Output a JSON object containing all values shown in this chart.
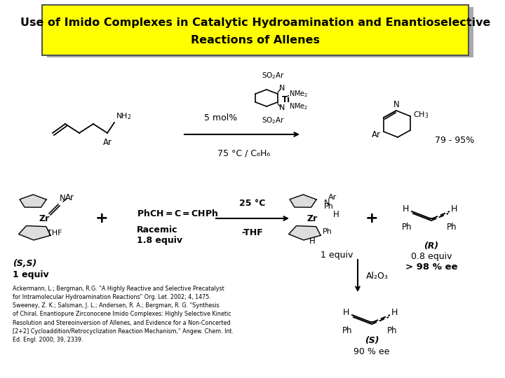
{
  "title_line1": "Use of Imido Complexes in Catalytic Hydroamination and Enantioselective",
  "title_line2": "Reactions of Allenes",
  "title_box_color": "#FFFF00",
  "title_border_color": "#555555",
  "title_shadow_color": "#AAAAAA",
  "bg_color": "#FFFFFF",
  "title_fontsize": 11.5,
  "text_color": "#000000",
  "label_5mol": "5 mol%",
  "label_temp": "75 °C / C₆H₆",
  "label_yield": "79 - 95%",
  "label_25C": "25 °C",
  "label_thf": "-THF",
  "label_racemic_1": "Racemic",
  "label_racemic_2": "1.8 equiv",
  "label_ss": "(S,S)",
  "label_1equiv_left": "1 equiv",
  "label_1equiv_right": "1 equiv",
  "label_R": "(R)",
  "label_08equiv": "0.8 equiv",
  "label_98ee": "> 98 % ee",
  "label_al2o3": "Al₂O₃",
  "label_S": "(S)",
  "label_90ee": "90 % ee",
  "ref_text": "Ackermann, L.; Bergman, R.G. \"A Highly Reactive and Selective Precatalyst\nfor Intramolecular Hydroamination Reactions\" Org. Let. 2002; 4, 1475.\nSweeney, Z. K.; Salsman, J. L.; Andersen, R. A.; Bergman, R. G. \"Synthesis\nof Chiral, Enantiopure Zirconocene Imido Complexes: Highly Selective Kinetic\nResolution and Stereoinversion of Allenes, and Evidence for a Non-Concerted\n[2+2] Cycloaddition/Retrocyclization Reaction Mechanism,\" Angew. Chem. Int.\nEd. Engl. 2000; 39, 2339."
}
